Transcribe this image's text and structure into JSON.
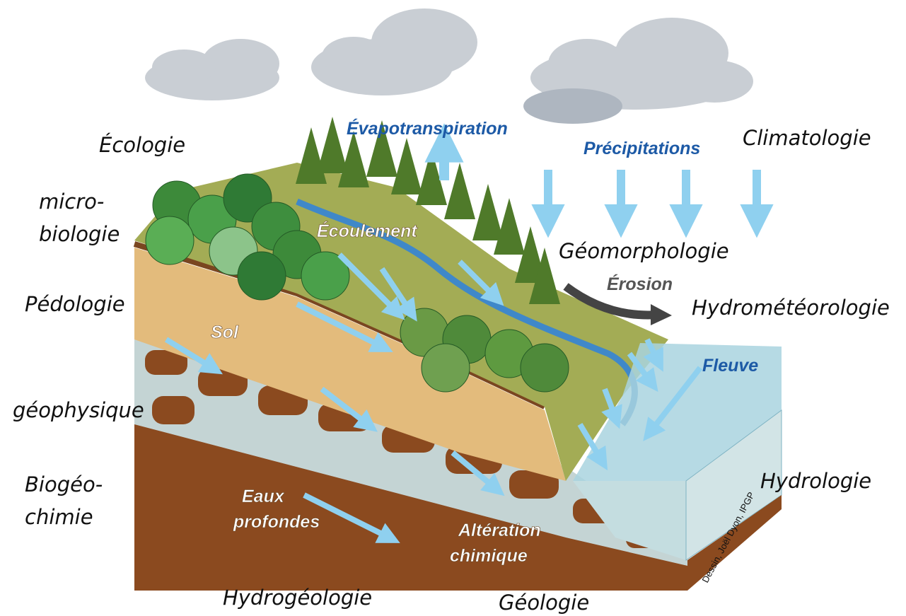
{
  "disciplines": [
    {
      "lines": [
        "Écologie"
      ]
    },
    {
      "lines": [
        "micro-",
        "biologie"
      ]
    },
    {
      "lines": [
        "Pédologie"
      ]
    },
    {
      "lines": [
        "géophysique"
      ]
    },
    {
      "lines": [
        "Biogéo-",
        "chimie"
      ]
    },
    {
      "lines": [
        "Hydrogéologie"
      ]
    },
    {
      "lines": [
        "Géologie"
      ]
    },
    {
      "lines": [
        "Hydrologie"
      ]
    },
    {
      "lines": [
        "Géomorphologie"
      ]
    },
    {
      "lines": [
        "Hydrométéorologie"
      ]
    },
    {
      "lines": [
        "Climatologie"
      ]
    }
  ],
  "processes": [
    {
      "lines": [
        "Évapotranspiration"
      ]
    },
    {
      "lines": [
        "Précipitations"
      ]
    },
    {
      "lines": [
        "Écoulement"
      ]
    },
    {
      "lines": [
        "Érosion"
      ]
    },
    {
      "lines": [
        "Sol"
      ]
    },
    {
      "lines": [
        "Fleuve"
      ]
    },
    {
      "lines": [
        "Eaux",
        "profondes"
      ]
    },
    {
      "lines": [
        "Altération",
        "chimique"
      ]
    }
  ],
  "credit": "Dessin, Joël Dyon, IPGP"
}
